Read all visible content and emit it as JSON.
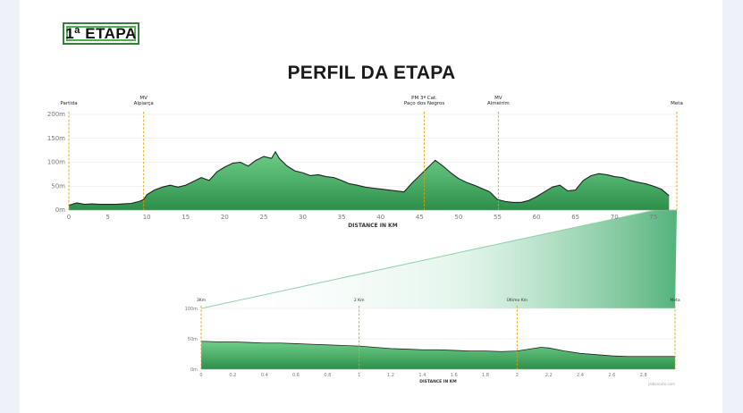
{
  "badge": {
    "label": "1ª ETAPA"
  },
  "title": "PERFIL DA ETAPA",
  "colors": {
    "fill_light": "#6fcf8a",
    "fill_dark": "#2e8f4a",
    "line": "#222222",
    "marker": "#e0a100"
  },
  "chart_data": [
    {
      "type": "area",
      "xlabel": "DISTANCE IN KM",
      "xlim": [
        0,
        78
      ],
      "ylim": [
        0,
        200
      ],
      "x_ticks": [
        0,
        5,
        10,
        15,
        20,
        25,
        30,
        35,
        40,
        45,
        50,
        55,
        60,
        65,
        70,
        75
      ],
      "y_ticks": [
        {
          "value": 0,
          "label": "0m"
        },
        {
          "value": 50,
          "label": "50m"
        },
        {
          "value": 100,
          "label": "100m"
        },
        {
          "value": 150,
          "label": "150m"
        },
        {
          "value": 200,
          "label": "200m"
        }
      ],
      "x": [
        0,
        1,
        2,
        3,
        4,
        5,
        6,
        7,
        8,
        9,
        9.6,
        10,
        11,
        12,
        13,
        14,
        15,
        16,
        17,
        18,
        19,
        20,
        21,
        22,
        23,
        24,
        25,
        26,
        26.5,
        27,
        28,
        29,
        30,
        31,
        32,
        33,
        34,
        35,
        36,
        37,
        38,
        39,
        40,
        41,
        42,
        43,
        44,
        45,
        46,
        47,
        48,
        49,
        50,
        51,
        52,
        53,
        54,
        55,
        56,
        57,
        58,
        59,
        60,
        61,
        62,
        63,
        64,
        65,
        66,
        67,
        68,
        69,
        70,
        71,
        72,
        73,
        74,
        75,
        76,
        77
      ],
      "y": [
        10,
        15,
        12,
        13,
        12,
        12,
        12,
        13,
        14,
        18,
        22,
        32,
        42,
        48,
        52,
        48,
        52,
        60,
        68,
        62,
        80,
        90,
        98,
        100,
        92,
        104,
        112,
        108,
        122,
        108,
        92,
        82,
        78,
        72,
        74,
        70,
        68,
        62,
        55,
        52,
        48,
        46,
        44,
        42,
        40,
        38,
        56,
        72,
        88,
        104,
        92,
        78,
        66,
        58,
        52,
        45,
        38,
        22,
        18,
        16,
        16,
        20,
        28,
        38,
        48,
        52,
        40,
        42,
        62,
        72,
        76,
        74,
        70,
        68,
        62,
        58,
        55,
        50,
        44,
        30
      ],
      "annotations": [
        {
          "x": 0,
          "lines": [
            "Partida"
          ]
        },
        {
          "x": 9.6,
          "lines": [
            "MV",
            "Alpiarça"
          ]
        },
        {
          "x": 45.6,
          "lines": [
            "PM 3ª Cat.",
            "Paço dos Negros"
          ]
        },
        {
          "x": 55.1,
          "lines": [
            "MV",
            "Almeirim"
          ]
        },
        {
          "x": 78,
          "lines": [
            "Meta"
          ]
        }
      ]
    },
    {
      "type": "area",
      "xlabel": "DISTANCE IN KM",
      "xlim": [
        0,
        3
      ],
      "ylim": [
        0,
        100
      ],
      "x_ticks": [
        {
          "value": 0,
          "label": "0"
        },
        {
          "value": 0.2,
          "label": "0.2"
        },
        {
          "value": 0.4,
          "label": "0.4"
        },
        {
          "value": 0.6,
          "label": "0.6"
        },
        {
          "value": 0.8,
          "label": "0.8"
        },
        {
          "value": 1.0,
          "label": "1"
        },
        {
          "value": 1.2,
          "label": "1.2"
        },
        {
          "value": 1.4,
          "label": "1.4"
        },
        {
          "value": 1.6,
          "label": "1.6"
        },
        {
          "value": 1.8,
          "label": "1.8"
        },
        {
          "value": 2.0,
          "label": "2"
        },
        {
          "value": 2.2,
          "label": "2.2"
        },
        {
          "value": 2.4,
          "label": "2.4"
        },
        {
          "value": 2.6,
          "label": "2.6"
        },
        {
          "value": 2.8,
          "label": "2.8"
        }
      ],
      "y_ticks": [
        {
          "value": 0,
          "label": "0m"
        },
        {
          "value": 50,
          "label": "50m"
        },
        {
          "value": 100,
          "label": "100m"
        }
      ],
      "x": [
        0,
        0.1,
        0.2,
        0.3,
        0.4,
        0.5,
        0.6,
        0.7,
        0.8,
        0.9,
        1.0,
        1.1,
        1.2,
        1.3,
        1.4,
        1.5,
        1.6,
        1.7,
        1.8,
        1.9,
        2.0,
        2.1,
        2.15,
        2.2,
        2.3,
        2.4,
        2.5,
        2.6,
        2.7,
        2.8,
        2.9,
        3.0
      ],
      "y": [
        46,
        45,
        45,
        44,
        43,
        43,
        42,
        41,
        40,
        39,
        38,
        36,
        34,
        33,
        32,
        32,
        31,
        30,
        30,
        29,
        30,
        34,
        36,
        35,
        30,
        26,
        24,
        22,
        21,
        21,
        21,
        21
      ],
      "annotations": [
        {
          "x": 0,
          "lines": [
            "3Km"
          ]
        },
        {
          "x": 1.0,
          "lines": [
            "2 Km"
          ]
        },
        {
          "x": 2.0,
          "lines": [
            "Último Km"
          ]
        },
        {
          "x": 3.0,
          "lines": [
            "Meta"
          ]
        }
      ],
      "credit": "jalbaroute.com"
    }
  ]
}
